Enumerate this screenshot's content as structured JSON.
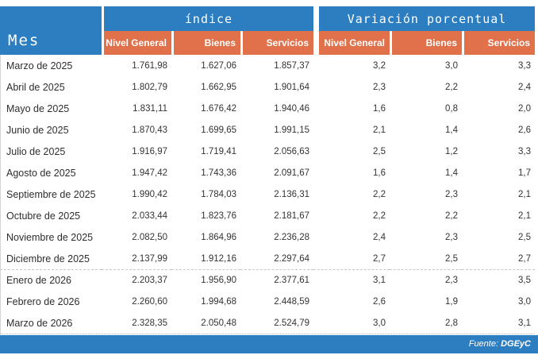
{
  "table": {
    "mes_header": "Mes",
    "groups": [
      {
        "label": "índice"
      },
      {
        "label": "Variación porcentual"
      }
    ],
    "subcolumns": [
      "Nivel General",
      "Bienes",
      "Servicios",
      "Nivel General",
      "Bienes",
      "Servicios"
    ],
    "rows": [
      {
        "month": "Marzo de 2025",
        "values": [
          "1.761,98",
          "1.627,06",
          "1.857,37",
          "3,2",
          "3,0",
          "3,3"
        ]
      },
      {
        "month": "Abril de 2025",
        "values": [
          "1.802,79",
          "1.662,95",
          "1.901,64",
          "2,3",
          "2,2",
          "2,4"
        ]
      },
      {
        "month": "Mayo de 2025",
        "values": [
          "1.831,11",
          "1.676,42",
          "1.940,46",
          "1,6",
          "0,8",
          "2,0"
        ]
      },
      {
        "month": "Junio de 2025",
        "values": [
          "1.870,43",
          "1.699,65",
          "1.991,15",
          "2,1",
          "1,4",
          "2,6"
        ]
      },
      {
        "month": "Julio de 2025",
        "values": [
          "1.916,97",
          "1.719,41",
          "2.056,63",
          "2,5",
          "1,2",
          "3,3"
        ]
      },
      {
        "month": "Agosto de 2025",
        "values": [
          "1.947,42",
          "1.743,36",
          "2.091,67",
          "1,6",
          "1,4",
          "1,7"
        ]
      },
      {
        "month": "Septiembre de 2025",
        "values": [
          "1.990,42",
          "1.784,03",
          "2.136,31",
          "2,2",
          "2,3",
          "2,1"
        ]
      },
      {
        "month": "Octubre de 2025",
        "values": [
          "2.033,44",
          "1.823,76",
          "2.181,67",
          "2,2",
          "2,2",
          "2,1"
        ]
      },
      {
        "month": "Noviembre de 2025",
        "values": [
          "2.082,50",
          "1.864,96",
          "2.236,28",
          "2,4",
          "2,3",
          "2,5"
        ]
      },
      {
        "month": "Diciembre de 2025",
        "values": [
          "2.137,99",
          "1.912,16",
          "2.297,64",
          "2,7",
          "2,5",
          "2,7"
        ]
      },
      {
        "month": "Enero de 2026",
        "values": [
          "2.203,37",
          "1.956,90",
          "2.377,61",
          "3,1",
          "2,3",
          "3,5"
        ],
        "year_break": true
      },
      {
        "month": "Febrero de 2026",
        "values": [
          "2.260,60",
          "1.994,68",
          "2.448,59",
          "2,6",
          "1,9",
          "3,0"
        ]
      },
      {
        "month": "Marzo de 2026",
        "values": [
          "2.328,35",
          "2.050,48",
          "2.524,79",
          "3,0",
          "2,8",
          "3,1"
        ]
      }
    ]
  },
  "footer": {
    "source_label": "Fuente:",
    "source_value": "DGEyC"
  },
  "colors": {
    "header_blue": "#2d7ec0",
    "header_orange": "#e0714a",
    "body_text": "#333333"
  },
  "chart_data": {
    "type": "table",
    "title": "",
    "column_groups": [
      "índice",
      "Variación porcentual"
    ],
    "columns": [
      "Mes",
      "índice Nivel General",
      "índice Bienes",
      "índice Servicios",
      "Variación porcentual Nivel General",
      "Variación porcentual Bienes",
      "Variación porcentual Servicios"
    ],
    "rows": [
      [
        "Marzo de 2025",
        1761.98,
        1627.06,
        1857.37,
        3.2,
        3.0,
        3.3
      ],
      [
        "Abril de 2025",
        1802.79,
        1662.95,
        1901.64,
        2.3,
        2.2,
        2.4
      ],
      [
        "Mayo de 2025",
        1831.11,
        1676.42,
        1940.46,
        1.6,
        0.8,
        2.0
      ],
      [
        "Junio de 2025",
        1870.43,
        1699.65,
        1991.15,
        2.1,
        1.4,
        2.6
      ],
      [
        "Julio de 2025",
        1916.97,
        1719.41,
        2056.63,
        2.5,
        1.2,
        3.3
      ],
      [
        "Agosto de 2025",
        1947.42,
        1743.36,
        2091.67,
        1.6,
        1.4,
        1.7
      ],
      [
        "Septiembre de 2025",
        1990.42,
        1784.03,
        2136.31,
        2.2,
        2.3,
        2.1
      ],
      [
        "Octubre de 2025",
        2033.44,
        1823.76,
        2181.67,
        2.2,
        2.2,
        2.1
      ],
      [
        "Noviembre de 2025",
        2082.5,
        1864.96,
        2236.28,
        2.4,
        2.3,
        2.5
      ],
      [
        "Diciembre de 2025",
        2137.99,
        1912.16,
        2297.64,
        2.7,
        2.5,
        2.7
      ],
      [
        "Enero de 2026",
        2203.37,
        1956.9,
        2377.61,
        3.1,
        2.3,
        3.5
      ],
      [
        "Febrero de 2026",
        2260.6,
        1994.68,
        2448.59,
        2.6,
        1.9,
        3.0
      ],
      [
        "Marzo de 2026",
        2328.35,
        2050.48,
        2524.79,
        3.0,
        2.8,
        3.1
      ]
    ],
    "source": "Fuente: DGEyC",
    "layout": {
      "grid": false,
      "legend": "none",
      "decimal_separator": ",",
      "thousands_separator": "."
    }
  }
}
